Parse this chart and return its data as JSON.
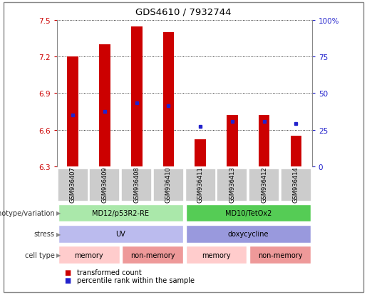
{
  "title": "GDS4610 / 7932744",
  "samples": [
    "GSM936407",
    "GSM936409",
    "GSM936408",
    "GSM936410",
    "GSM936411",
    "GSM936413",
    "GSM936412",
    "GSM936414"
  ],
  "bar_values": [
    7.2,
    7.3,
    7.45,
    7.4,
    6.52,
    6.72,
    6.72,
    6.55
  ],
  "bar_bottom": 6.3,
  "percentile_values": [
    6.72,
    6.75,
    6.82,
    6.8,
    6.63,
    6.67,
    6.67,
    6.65
  ],
  "ylim": [
    6.3,
    7.5
  ],
  "yticks_left": [
    6.3,
    6.6,
    6.9,
    7.2,
    7.5
  ],
  "yticks_right_vals": [
    0,
    25,
    50,
    75,
    100
  ],
  "yticks_right_pos": [
    6.3,
    6.6,
    6.9,
    7.2,
    7.5
  ],
  "yticks_right_labels": [
    "0",
    "25",
    "50",
    "75",
    "100%"
  ],
  "bar_color": "#cc0000",
  "percentile_color": "#2222cc",
  "left_label_color": "#cc0000",
  "right_label_color": "#2222cc",
  "annotation_rows": [
    {
      "label": "genotype/variation",
      "groups": [
        {
          "text": "MD12/p53R2-RE",
          "span": [
            0,
            4
          ],
          "color": "#aae8aa"
        },
        {
          "text": "MD10/TetOx2",
          "span": [
            4,
            8
          ],
          "color": "#55cc55"
        }
      ]
    },
    {
      "label": "stress",
      "groups": [
        {
          "text": "UV",
          "span": [
            0,
            4
          ],
          "color": "#bbbbee"
        },
        {
          "text": "doxycycline",
          "span": [
            4,
            8
          ],
          "color": "#9999dd"
        }
      ]
    },
    {
      "label": "cell type",
      "groups": [
        {
          "text": "memory",
          "span": [
            0,
            2
          ],
          "color": "#ffcccc"
        },
        {
          "text": "non-memory",
          "span": [
            2,
            4
          ],
          "color": "#ee9999"
        },
        {
          "text": "memory",
          "span": [
            4,
            6
          ],
          "color": "#ffcccc"
        },
        {
          "text": "non-memory",
          "span": [
            6,
            8
          ],
          "color": "#ee9999"
        }
      ]
    }
  ],
  "legend_items": [
    {
      "color": "#cc0000",
      "label": "transformed count"
    },
    {
      "color": "#2222cc",
      "label": "percentile rank within the sample"
    }
  ],
  "grid_color": "black",
  "bar_width": 0.35,
  "sample_bg_color": "#cccccc",
  "outer_border_color": "#888888"
}
